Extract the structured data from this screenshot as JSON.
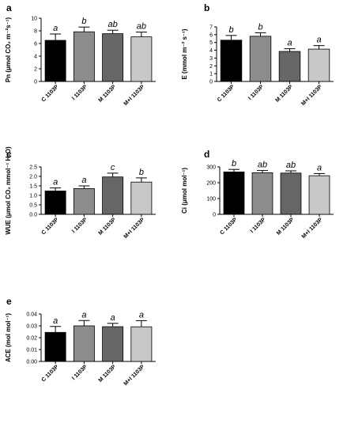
{
  "chart_data": [
    {
      "panel": "a",
      "type": "bar",
      "categories": [
        "C 1103P",
        "I 1103P",
        "M 1103P",
        "M+I 1103P"
      ],
      "values": [
        6.5,
        7.85,
        7.55,
        7.05
      ],
      "errors": [
        1.0,
        0.75,
        0.55,
        0.75
      ],
      "significance": [
        "a",
        "b",
        "ab",
        "ab"
      ],
      "colors": [
        "#000000",
        "#8c8c8c",
        "#666666",
        "#c8c8c8"
      ],
      "ylabel": "Pn (μmol CO₂ m⁻²s⁻¹)",
      "ylim": [
        0,
        10
      ],
      "yticks": [
        0,
        2,
        4,
        6,
        8,
        10
      ],
      "ytick_labels": [
        "0",
        "2",
        "4",
        "6",
        "8",
        "10"
      ]
    },
    {
      "panel": "b",
      "type": "bar",
      "categories": [
        "C 1103P",
        "I 1103P",
        "M 1103P",
        "M+I 1103P"
      ],
      "values": [
        5.3,
        5.8,
        3.85,
        4.15
      ],
      "errors": [
        0.6,
        0.45,
        0.35,
        0.45
      ],
      "significance": [
        "b",
        "b",
        "a",
        "a"
      ],
      "colors": [
        "#000000",
        "#8c8c8c",
        "#666666",
        "#c8c8c8"
      ],
      "ylabel": "E (mmol m⁻² s⁻¹)",
      "ylim": [
        0,
        7
      ],
      "yticks": [
        0,
        1,
        2,
        3,
        4,
        5,
        6,
        7
      ],
      "ytick_labels": [
        "0",
        "1",
        "2",
        "3",
        "4",
        "5",
        "6",
        "7"
      ]
    },
    {
      "panel": "c",
      "type": "bar",
      "categories": [
        "C 1103P",
        "I 1103P",
        "M 1103P",
        "M+I 1103P"
      ],
      "values": [
        1.23,
        1.36,
        1.97,
        1.7
      ],
      "errors": [
        0.16,
        0.14,
        0.2,
        0.22
      ],
      "significance": [
        "a",
        "a",
        "c",
        "b"
      ],
      "colors": [
        "#000000",
        "#8c8c8c",
        "#666666",
        "#c8c8c8"
      ],
      "ylabel": "WUE (μmol CO₂ mmol⁻¹ H₂O)",
      "ylim": [
        0,
        2.5
      ],
      "yticks": [
        0,
        0.5,
        1,
        1.5,
        2,
        2.5
      ],
      "ytick_labels": [
        "0.0",
        "0.5",
        "1.0",
        "1.5",
        "2.0",
        "2.5"
      ]
    },
    {
      "panel": "d",
      "type": "bar",
      "categories": [
        "C 1103P",
        "I 1103P",
        "M 1103P",
        "M+I 1103P"
      ],
      "values": [
        268,
        263,
        261,
        244
      ],
      "errors": [
        16,
        14,
        14,
        14
      ],
      "significance": [
        "b",
        "ab",
        "ab",
        "a"
      ],
      "colors": [
        "#000000",
        "#8c8c8c",
        "#666666",
        "#c8c8c8"
      ],
      "ylabel": "Ci (μmol mol⁻¹)",
      "ylim": [
        0,
        300
      ],
      "yticks": [
        0,
        100,
        200,
        300
      ],
      "ytick_labels": [
        "0",
        "100",
        "200",
        "300"
      ]
    },
    {
      "panel": "e",
      "type": "bar",
      "categories": [
        "C 1103P",
        "I 1103P",
        "M 1103P",
        "M+I 1103P"
      ],
      "values": [
        0.0245,
        0.03,
        0.0293,
        0.0292
      ],
      "errors": [
        0.005,
        0.0045,
        0.0028,
        0.0052
      ],
      "significance": [
        "a",
        "a",
        "a",
        "a"
      ],
      "colors": [
        "#000000",
        "#8c8c8c",
        "#666666",
        "#c8c8c8"
      ],
      "ylabel": "ACE (mol mol⁻¹)",
      "ylim": [
        0,
        0.04
      ],
      "yticks": [
        0,
        0.01,
        0.02,
        0.03,
        0.04
      ],
      "ytick_labels": [
        "0.00",
        "0.01",
        "0.02",
        "0.03",
        "0.04"
      ]
    }
  ]
}
